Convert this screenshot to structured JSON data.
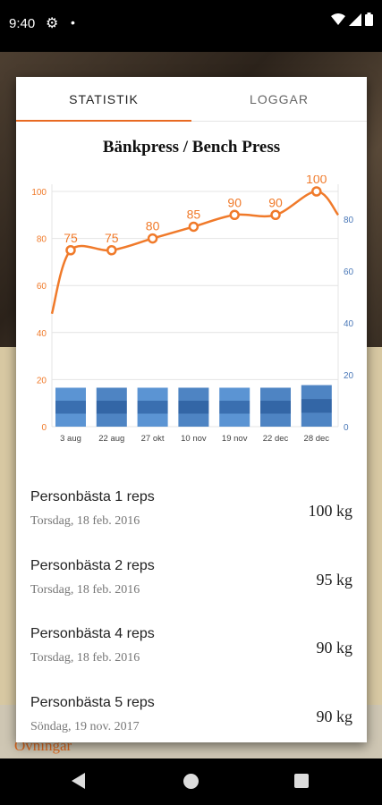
{
  "status_bar": {
    "time": "9:40",
    "gear_icon": "gear-icon",
    "dot": "•",
    "icons": [
      "wifi-icon",
      "signal-icon",
      "battery-icon"
    ]
  },
  "background": {
    "section_label": "Övningar"
  },
  "tabs": [
    {
      "label": "STATISTIK",
      "active": true
    },
    {
      "label": "LOGGAR",
      "active": false
    }
  ],
  "chart": {
    "title": "Bänkpress / Bench Press"
  },
  "chart_data": {
    "type": "line",
    "categories": [
      "3 aug",
      "22 aug",
      "27 okt",
      "10 nov",
      "19 nov",
      "22 dec",
      "28 dec"
    ],
    "series": [
      {
        "values": [
          75,
          75,
          80,
          85,
          90,
          90,
          100
        ],
        "color": "#f07a2a"
      },
      {
        "type": "bar",
        "values": [
          15,
          15,
          15,
          15,
          15,
          15,
          16
        ],
        "color": "#4a82c4"
      }
    ],
    "left_axis": {
      "ticks": [
        0,
        20,
        40,
        60,
        80,
        100
      ],
      "color": "#f07a2a",
      "ylim": [
        0,
        100
      ]
    },
    "right_axis": {
      "ticks": [
        0,
        20,
        40,
        60,
        80
      ],
      "color": "#4a78b8",
      "ylim": [
        0,
        92
      ]
    },
    "grid": true
  },
  "records": [
    {
      "title": "Personbästa 1 reps",
      "date": "Torsdag, 18 feb. 2016",
      "value": "100 kg"
    },
    {
      "title": "Personbästa 2 reps",
      "date": "Torsdag, 18 feb. 2016",
      "value": "95 kg"
    },
    {
      "title": "Personbästa 4 reps",
      "date": "Torsdag, 18 feb. 2016",
      "value": "90 kg"
    },
    {
      "title": "Personbästa 5 reps",
      "date": "Söndag, 19 nov. 2017",
      "value": "90 kg"
    }
  ],
  "nav": {
    "back_icon": "back-icon",
    "home_icon": "home-icon",
    "recent_icon": "recent-apps-icon"
  }
}
